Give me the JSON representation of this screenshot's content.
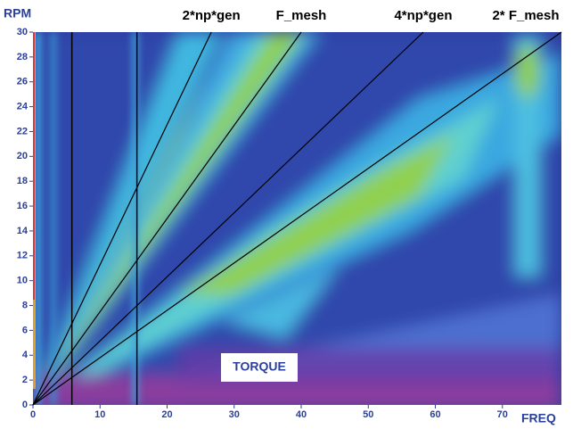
{
  "chart_data": {
    "type": "line",
    "y_axis_label": "RPM",
    "x_axis_label": "FREQ",
    "annotation": "TORQUE",
    "xlim": [
      0,
      78.8
    ],
    "xticks": [
      0,
      10,
      20,
      30,
      40,
      50,
      60,
      70
    ],
    "ylim": [
      0,
      30
    ],
    "yticks": [
      0,
      2,
      4,
      6,
      8,
      10,
      12,
      14,
      16,
      18,
      20,
      22,
      24,
      26,
      28,
      30
    ],
    "series": [
      {
        "name": "2*np*gen",
        "color": "#000000",
        "x": [
          0,
          26.6
        ],
        "values": [
          0,
          30
        ]
      },
      {
        "name": "F_mesh",
        "color": "#000000",
        "x": [
          0,
          40
        ],
        "values": [
          0,
          30
        ]
      },
      {
        "name": "4*np*gen",
        "color": "#000000",
        "x": [
          0,
          58.2
        ],
        "values": [
          0,
          30
        ]
      },
      {
        "name": "2* F_mesh",
        "color": "#000000",
        "x": [
          0,
          78.8
        ],
        "values": [
          0,
          30
        ]
      }
    ],
    "vlines": [
      5.8,
      15.5
    ]
  }
}
